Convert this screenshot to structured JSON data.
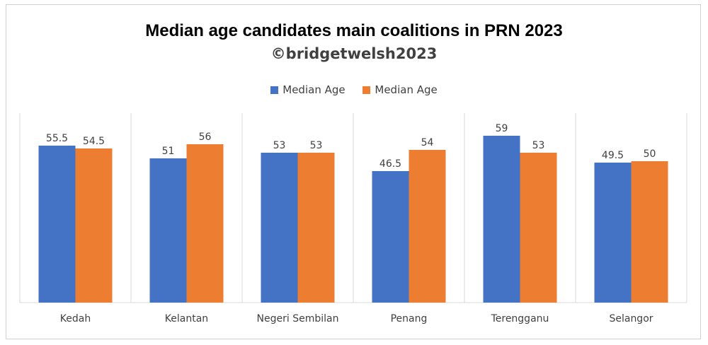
{
  "chart_data": {
    "type": "bar",
    "title": "Median age candidates main coalitions in PRN 2023",
    "subtitle": "©bridgetwelsh2023",
    "categories": [
      "Kedah",
      "Kelantan",
      "Negeri Sembilan",
      "Penang",
      "Terengganu",
      "Selangor"
    ],
    "series": [
      {
        "name": "Median Age",
        "color": "#4472c4",
        "values": [
          55.5,
          51,
          53,
          46.5,
          59,
          49.5
        ]
      },
      {
        "name": "Median Age",
        "color": "#ed7d31",
        "values": [
          54.5,
          56,
          53,
          54,
          53,
          50
        ]
      }
    ],
    "ylim": [
      0,
      64
    ],
    "legend": "top",
    "grid": "vertical category separators",
    "data_labels": true
  }
}
